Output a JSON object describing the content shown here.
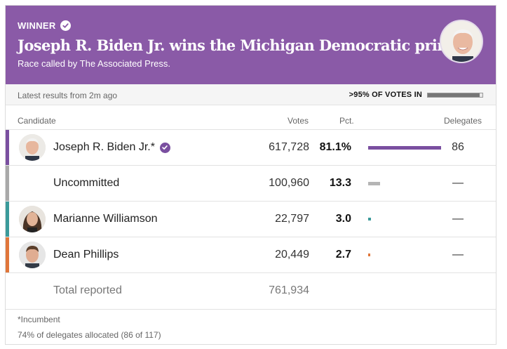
{
  "banner": {
    "winner_label": "WINNER",
    "headline": "Joseph R. Biden Jr. wins the Michigan Democratic primary.",
    "called_by": "Race called by The Associated Press."
  },
  "status": {
    "latest": "Latest results from 2m ago",
    "votes_in_label": ">95% OF VOTES IN",
    "votes_in_fraction": 0.95
  },
  "columns": {
    "candidate": "Candidate",
    "votes": "Votes",
    "pct": "Pct.",
    "delegates": "Delegates"
  },
  "rows": [
    {
      "name": "Joseph R. Biden Jr.*",
      "winner": true,
      "votes": "617,728",
      "pct": "81.1%",
      "pct_value": 81.1,
      "delegates": "86",
      "color": "#7a4fa0",
      "bar_color": "#7a4fa0"
    },
    {
      "name": "Uncommitted",
      "winner": false,
      "votes": "100,960",
      "pct": "13.3",
      "pct_value": 13.3,
      "delegates": "—",
      "color": "#a9a9a9",
      "bar_color": "#b5b5b5"
    },
    {
      "name": "Marianne Williamson",
      "winner": false,
      "votes": "22,797",
      "pct": "3.0",
      "pct_value": 3.0,
      "delegates": "—",
      "color": "#3a9a9a",
      "bar_color": "#3a9a9a"
    },
    {
      "name": "Dean Phillips",
      "winner": false,
      "votes": "20,449",
      "pct": "2.7",
      "pct_value": 2.7,
      "delegates": "—",
      "color": "#e0763a",
      "bar_color": "#e0763a"
    }
  ],
  "total": {
    "label": "Total reported",
    "votes": "761,934"
  },
  "footer": {
    "incumbent_note": "*Incumbent",
    "delegates_note": "74% of delegates allocated (86 of 117)"
  },
  "colors": {
    "banner": "#8a5aa7",
    "winner_check": "#7a4fa0"
  },
  "icons": {
    "winner": "check-circle-icon",
    "avatar": "candidate-photo"
  }
}
